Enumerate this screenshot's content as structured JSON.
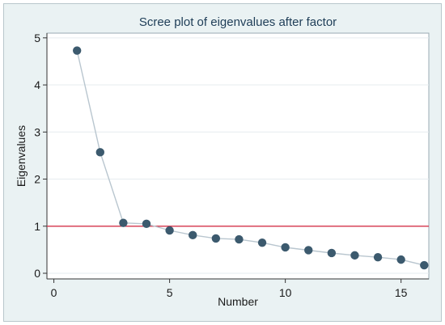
{
  "chart_data": {
    "type": "line",
    "title": "Scree plot of eigenvalues after factor",
    "xlabel": "Number",
    "ylabel": "Eigenvalues",
    "x": [
      1,
      2,
      3,
      4,
      5,
      6,
      7,
      8,
      9,
      10,
      11,
      12,
      13,
      14,
      15,
      16
    ],
    "series": [
      {
        "values": [
          4.73,
          2.57,
          1.07,
          1.05,
          0.91,
          0.81,
          0.74,
          0.72,
          0.65,
          0.55,
          0.49,
          0.43,
          0.38,
          0.34,
          0.29,
          0.17
        ]
      }
    ],
    "reference_line": {
      "y": 1,
      "color": "#d6334a"
    },
    "xlim": [
      -0.3,
      16.2
    ],
    "ylim": [
      -0.12,
      5.1
    ],
    "xticks": [
      0,
      5,
      10,
      15
    ],
    "yticks": [
      0,
      1,
      2,
      3,
      4,
      5
    ],
    "grid": "horizontal",
    "colors": {
      "marker": "#3c5a6e",
      "line": "#b9c6cf",
      "background": "#eaf2f3",
      "plot_area": "#ffffff"
    }
  }
}
